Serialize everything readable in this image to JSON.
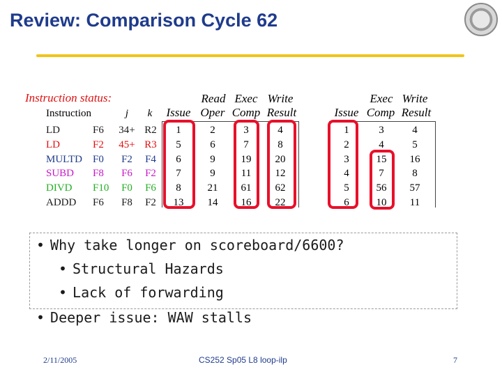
{
  "slide": {
    "title": "Review: Comparison Cycle 62"
  },
  "table": {
    "caption": "Instruction status:",
    "group_headers": {
      "read": "Read",
      "exec": "Exec",
      "write": "Write",
      "exec2": "Exec",
      "write2": "Write"
    },
    "column_headers": {
      "instruction": "Instruction",
      "j": "j",
      "k": "k",
      "issue": "Issue",
      "oper": "Oper",
      "comp": "Comp",
      "result": "Result",
      "issue2": "Issue",
      "comp2": "Comp",
      "result2": "Result"
    },
    "rows": [
      {
        "op": "LD",
        "dst": "F6",
        "j": "34+",
        "k": "R2",
        "color": "#1a1a1a",
        "sb": [
          "1",
          "2",
          "3",
          "4"
        ],
        "tm": [
          "1",
          "3",
          "4"
        ]
      },
      {
        "op": "LD",
        "dst": "F2",
        "j": "45+",
        "k": "R3",
        "color": "#e01010",
        "sb": [
          "5",
          "6",
          "7",
          "8"
        ],
        "tm": [
          "2",
          "4",
          "5"
        ]
      },
      {
        "op": "MULTD",
        "dst": "F0",
        "j": "F2",
        "k": "F4",
        "color": "#1f3b8c",
        "sb": [
          "6",
          "9",
          "19",
          "20"
        ],
        "tm": [
          "3",
          "15",
          "16"
        ]
      },
      {
        "op": "SUBD",
        "dst": "F8",
        "j": "F6",
        "k": "F2",
        "color": "#c818c8",
        "sb": [
          "7",
          "9",
          "11",
          "12"
        ],
        "tm": [
          "4",
          "7",
          "8"
        ]
      },
      {
        "op": "DIVD",
        "dst": "F10",
        "j": "F0",
        "k": "F6",
        "color": "#22b022",
        "sb": [
          "8",
          "21",
          "61",
          "62"
        ],
        "tm": [
          "5",
          "56",
          "57"
        ]
      },
      {
        "op": "ADDD",
        "dst": "F6",
        "j": "F8",
        "k": "F2",
        "color": "#1a1a1a",
        "sb": [
          "13",
          "14",
          "16",
          "22"
        ],
        "tm": [
          "6",
          "10",
          "11"
        ]
      }
    ]
  },
  "bullets": {
    "b1": "Why take longer on scoreboard/6600?",
    "b2": "Structural Hazards",
    "b3": "Lack of forwarding",
    "b4": "Deeper issue: WAW stalls"
  },
  "footer": {
    "date": "2/11/2005",
    "course": "CS252 Sp05 L8 loop-ilp",
    "page": "7"
  },
  "colors": {
    "title": "#1f3b8c",
    "rule": "#f0c419",
    "highlight_box": "#e8102a",
    "caption": "#e01010"
  }
}
